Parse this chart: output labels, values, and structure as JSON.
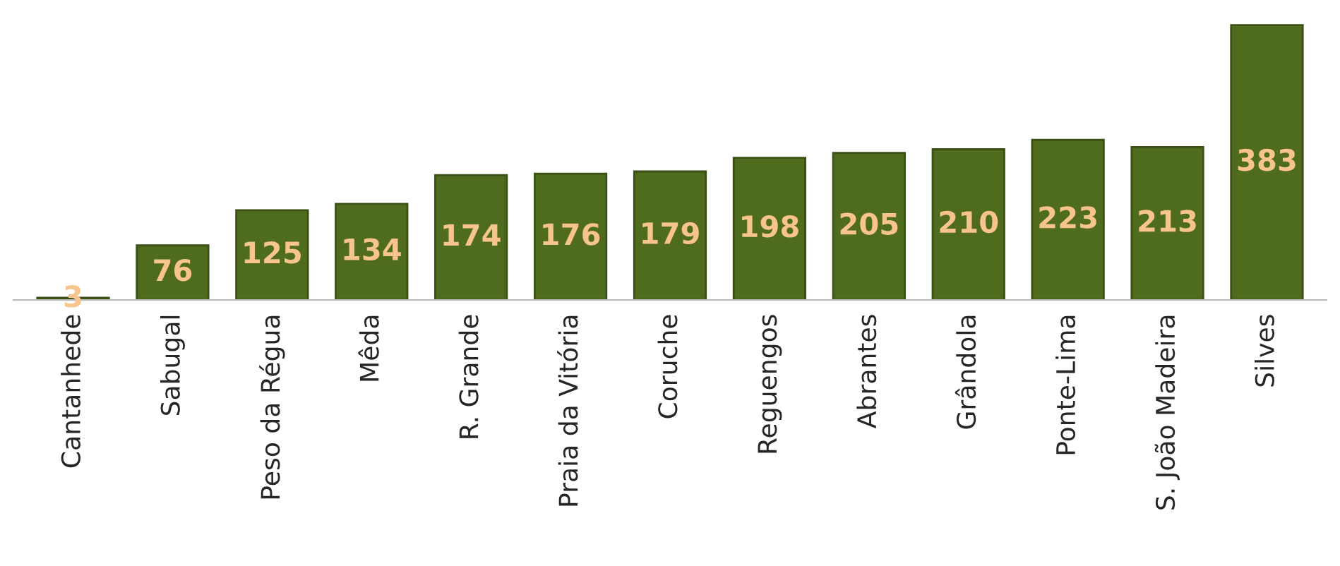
{
  "chart_data": {
    "type": "bar",
    "categories": [
      "Cantanhede",
      "Sabugal",
      "Peso da Régua",
      "Mêda",
      "R. Grande",
      "Praia da Vitória",
      "Coruche",
      "Reguengos",
      "Abrantes",
      "Grândola",
      "Ponte-Lima",
      "S. João Madeira",
      "Silves"
    ],
    "values": [
      3,
      76,
      125,
      134,
      174,
      176,
      179,
      198,
      205,
      210,
      223,
      213,
      383
    ],
    "color": "#4f6b1e",
    "data_labels": true,
    "grid": false,
    "legend": false
  }
}
